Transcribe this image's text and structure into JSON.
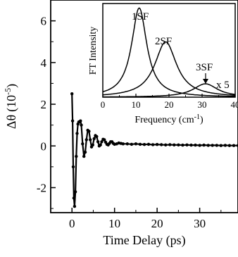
{
  "chart_data": [
    {
      "id": "main",
      "type": "line",
      "xlabel": "Time Delay (ps)",
      "ylabel_main": "Δθ",
      "ylabel_unit_base": "(10",
      "ylabel_unit_exp": "-5",
      "ylabel_unit_close": ")",
      "xlim": [
        -5,
        39
      ],
      "ylim": [
        -3.2,
        7
      ],
      "xticks": [
        0,
        10,
        20,
        30
      ],
      "xtick_labels": [
        "0",
        "10",
        "20",
        "30"
      ],
      "yticks": [
        -2,
        0,
        2,
        4,
        6
      ],
      "ytick_labels": [
        "-2",
        "0",
        "2",
        "4",
        "6"
      ],
      "series": [
        {
          "marker": "dot",
          "color": "#000000",
          "x": [
            0.0,
            0.15,
            0.3,
            0.45,
            0.6,
            0.8,
            1.0,
            1.2,
            1.4,
            1.6,
            1.8,
            2.0,
            2.2,
            2.5,
            2.8,
            3.1,
            3.4,
            3.7,
            4.0,
            4.3,
            4.6,
            4.9,
            5.2,
            5.5,
            5.8,
            6.1,
            6.4,
            6.7,
            7.0,
            7.3,
            7.6,
            7.9,
            8.2,
            8.5,
            8.8,
            9.1,
            9.4,
            9.7,
            10.0,
            10.5,
            11.0,
            11.5,
            12.0,
            13.0,
            14.0,
            15.0,
            16.0,
            17.0,
            18.0,
            19.0,
            20.0,
            21.0,
            22.0,
            23.0,
            24.0,
            25.0,
            26.0,
            27.0,
            28.0,
            29.0,
            30.0,
            31.0,
            32.0,
            33.0,
            34.0,
            35.0,
            36.0,
            37.0,
            38.0,
            39.0
          ],
          "y": [
            2.5,
            1.2,
            -1.0,
            -2.5,
            -2.9,
            -2.2,
            -0.5,
            0.6,
            1.05,
            1.15,
            1.15,
            1.2,
            1.0,
            0.1,
            -0.5,
            -0.3,
            0.3,
            0.75,
            0.7,
            0.3,
            -0.05,
            0.05,
            0.35,
            0.5,
            0.45,
            0.2,
            0.0,
            0.05,
            0.2,
            0.32,
            0.3,
            0.18,
            0.08,
            0.05,
            0.12,
            0.2,
            0.2,
            0.12,
            0.08,
            0.1,
            0.14,
            0.12,
            0.1,
            0.1,
            0.08,
            0.1,
            0.08,
            0.07,
            0.08,
            0.06,
            0.07,
            0.06,
            0.05,
            0.06,
            0.05,
            0.05,
            0.04,
            0.05,
            0.04,
            0.04,
            0.03,
            0.04,
            0.03,
            0.03,
            0.03,
            0.02,
            0.03,
            0.02,
            0.02,
            0.02
          ]
        }
      ]
    },
    {
      "id": "inset",
      "type": "line",
      "xlabel_base": "Frequency (cm",
      "xlabel_exp": "-1",
      "xlabel_close": ")",
      "ylabel": "FT Intensity",
      "xlim": [
        0,
        40
      ],
      "ylim": [
        0,
        1.05
      ],
      "xticks": [
        0,
        10,
        20,
        30,
        40
      ],
      "xtick_labels": [
        "0",
        "10",
        "20",
        "30",
        "40"
      ],
      "series": [
        {
          "name": "1SF",
          "center": 11,
          "hwhm": 2.8,
          "amplitude": 1.0
        },
        {
          "name": "2SF",
          "center": 19,
          "hwhm": 4.0,
          "amplitude": 0.62
        },
        {
          "name": "3SF",
          "center": 31,
          "hwhm": 4.5,
          "amplitude": 0.15
        }
      ],
      "annotations": [
        "1SF",
        "2SF",
        "3SF",
        "x 5"
      ]
    }
  ]
}
